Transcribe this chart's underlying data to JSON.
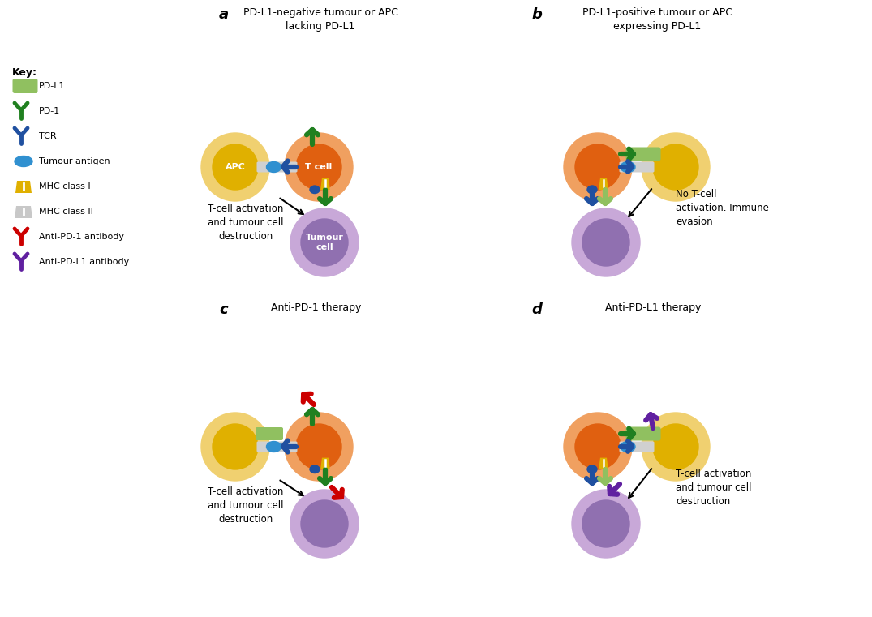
{
  "bg_color": "#ffffff",
  "colors": {
    "tcell_inner": "#E06010",
    "tcell_outer": "#F0A060",
    "apc_inner": "#E0B000",
    "apc_outer": "#F0D070",
    "tumour_inner": "#9070B0",
    "tumour_outer": "#C8A8D8",
    "pdl1": "#90C060",
    "pd1": "#208020",
    "tcr": "#2050A0",
    "antigen": "#3090D0",
    "mhc1": "#E0B000",
    "mhc2": "#C8C8C8",
    "anti_pd1": "#CC0000",
    "anti_pdl1": "#6020A0",
    "synapse": "#D0D0D0"
  },
  "panel_titles": [
    "PD-L1-negative tumour or APC\nlacking PD-L1",
    "PD-L1-positive tumour or APC\nexpressing PD-L1",
    "Anti-PD-1 therapy",
    "Anti-PD-L1 therapy"
  ],
  "panel_annotations": [
    "T-cell activation\nand tumour cell\ndestruction",
    "No T-cell\nactivation. Immune\nevasion",
    "T-cell activation\nand tumour cell\ndestruction",
    "T-cell activation\nand tumour cell\ndestruction"
  ],
  "key_labels": [
    "PD-L1",
    "PD-1",
    "TCR",
    "Tumour antigen",
    "MHC class I",
    "MHC class II",
    "Anti-PD-1 antibody",
    "Anti-PD-L1 antibody"
  ],
  "figsize": [
    10.75,
    7.61
  ],
  "dpi": 100
}
